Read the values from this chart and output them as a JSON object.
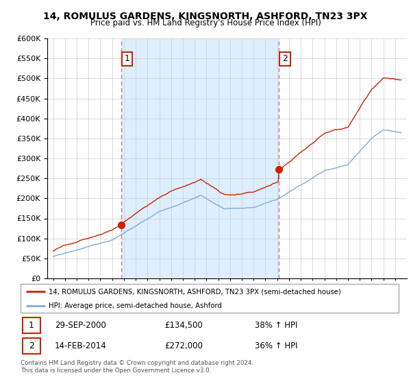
{
  "title": "14, ROMULUS GARDENS, KINGSNORTH, ASHFORD, TN23 3PX",
  "subtitle": "Price paid vs. HM Land Registry's House Price Index (HPI)",
  "legend_line1": "14, ROMULUS GARDENS, KINGSNORTH, ASHFORD, TN23 3PX (semi-detached house)",
  "legend_line2": "HPI: Average price, semi-detached house, Ashford",
  "annotation1_date": "29-SEP-2000",
  "annotation1_price": "£134,500",
  "annotation1_hpi": "38% ↑ HPI",
  "annotation2_date": "14-FEB-2014",
  "annotation2_price": "£272,000",
  "annotation2_hpi": "36% ↑ HPI",
  "footer": "Contains HM Land Registry data © Crown copyright and database right 2024.\nThis data is licensed under the Open Government Licence v3.0.",
  "hpi_color": "#7bafd4",
  "price_color": "#cc2200",
  "vline_color": "#e87070",
  "fill_color": "#ddeeff",
  "marker1_x": 2000.75,
  "marker1_y": 134500,
  "marker2_x": 2014.12,
  "marker2_y": 272000,
  "ylim": [
    0,
    600000
  ],
  "xlim": [
    1994.5,
    2025.0
  ]
}
